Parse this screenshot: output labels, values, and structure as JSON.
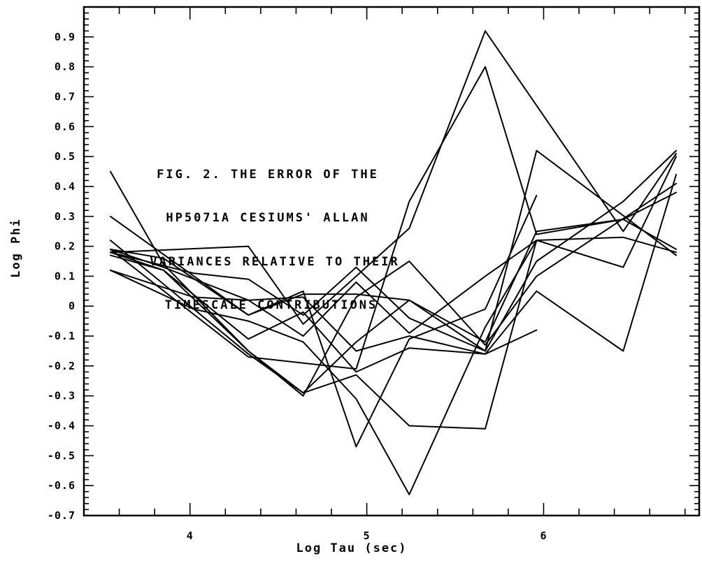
{
  "chart_data": {
    "type": "line",
    "title_lines": [
      "FIG. 2.  THE ERROR OF THE",
      "HP5071A CESIUMS' ALLAN",
      "VARIANCES RELATIVE TO THEIR",
      "TIMESCALE CONTRIBUTIONS"
    ],
    "xlabel": "Log Tau (sec)",
    "ylabel": "Log Phi",
    "xlim": [
      3.4,
      6.88
    ],
    "ylim": [
      -0.7,
      1.0
    ],
    "x_ticks": [
      4,
      5,
      6
    ],
    "x_tick_labels": [
      "4",
      "5",
      "6"
    ],
    "y_ticks": [
      0.9,
      0.8,
      0.7,
      0.6,
      0.5,
      0.4,
      0.3,
      0.2,
      0.1,
      0,
      -0.1,
      -0.2,
      -0.3,
      -0.4,
      -0.5,
      -0.6,
      -0.7
    ],
    "y_tick_labels": [
      "0.9",
      "0.8",
      "0.7",
      "0.6",
      "0.5",
      "0.4",
      "0.3",
      "0.2",
      "0.1",
      "0",
      "-0.1",
      "-0.2",
      "-0.3",
      "-0.4",
      "-0.5",
      "-0.6",
      "-0.7"
    ],
    "grid": false,
    "line_color": "#000000",
    "series": [
      {
        "x": [
          3.55,
          4.33,
          4.64,
          5.24,
          5.67,
          6.45,
          6.75
        ],
        "y": [
          0.18,
          0.2,
          -0.06,
          0.26,
          0.92,
          0.25,
          0.51
        ]
      },
      {
        "x": [
          3.55,
          4.33,
          4.94,
          5.24,
          5.67,
          5.96,
          6.45,
          6.75
        ],
        "y": [
          0.19,
          -0.17,
          -0.21,
          0.35,
          0.8,
          0.24,
          0.29,
          0.19
        ]
      },
      {
        "x": [
          3.55,
          3.85,
          4.33,
          4.64,
          4.94,
          5.24,
          5.67,
          5.96,
          6.75
        ],
        "y": [
          0.45,
          0.14,
          -0.15,
          -0.29,
          -0.12,
          0.02,
          -0.15,
          0.52,
          0.17
        ]
      },
      {
        "x": [
          3.55,
          4.33,
          4.64,
          4.94,
          5.24,
          5.67,
          5.96
        ],
        "y": [
          0.3,
          -0.03,
          0.05,
          -0.47,
          -0.11,
          -0.01,
          0.37
        ]
      },
      {
        "x": [
          3.55,
          4.33,
          4.64,
          4.94,
          5.24,
          5.67,
          5.96,
          6.45,
          6.75
        ],
        "y": [
          0.22,
          -0.16,
          -0.29,
          -0.23,
          -0.4,
          -0.41,
          0.22,
          0.23,
          0.18
        ]
      },
      {
        "x": [
          3.55,
          4.02,
          4.33,
          4.64,
          4.94,
          5.24,
          5.67,
          5.96,
          6.45,
          6.75
        ],
        "y": [
          0.12,
          -0.01,
          -0.05,
          -0.12,
          -0.31,
          -0.63,
          -0.07,
          0.22,
          0.13,
          0.5
        ]
      },
      {
        "x": [
          3.55,
          3.85,
          4.33,
          4.64,
          4.94,
          5.24,
          5.67,
          5.96,
          6.45,
          6.75
        ],
        "y": [
          0.18,
          0.12,
          -0.11,
          -0.02,
          -0.22,
          -0.14,
          -0.16,
          0.05,
          -0.15,
          0.44
        ]
      },
      {
        "x": [
          3.55,
          3.85,
          4.33,
          4.64,
          4.94,
          5.24,
          5.67,
          5.96,
          6.75
        ],
        "y": [
          0.17,
          0.12,
          -0.15,
          -0.3,
          0.03,
          0.15,
          -0.13,
          0.1,
          0.41
        ]
      },
      {
        "x": [
          3.55,
          4.02,
          4.33,
          4.64,
          4.94,
          5.24,
          5.67,
          5.96,
          6.45,
          6.75
        ],
        "y": [
          0.18,
          0.11,
          0.09,
          -0.03,
          0.13,
          -0.04,
          -0.15,
          0.15,
          0.35,
          0.52
        ]
      },
      {
        "x": [
          3.55,
          4.02,
          4.33,
          4.64,
          4.94,
          5.24,
          5.67,
          5.96
        ],
        "y": [
          0.12,
          0.03,
          0.02,
          -0.1,
          0.08,
          -0.09,
          0.1,
          0.22
        ]
      },
      {
        "x": [
          3.55,
          3.85,
          4.33,
          4.64,
          4.94,
          5.24,
          5.67,
          5.96
        ],
        "y": [
          0.19,
          0.13,
          0.02,
          0.03,
          -0.15,
          -0.1,
          -0.16,
          -0.08
        ]
      },
      {
        "x": [
          3.55,
          3.85,
          4.33,
          4.64,
          4.94,
          5.24,
          5.67,
          5.96,
          6.45,
          6.75
        ],
        "y": [
          0.19,
          0.16,
          -0.03,
          0.04,
          0.04,
          0.02,
          -0.12,
          0.25,
          0.29,
          0.38
        ]
      }
    ]
  }
}
